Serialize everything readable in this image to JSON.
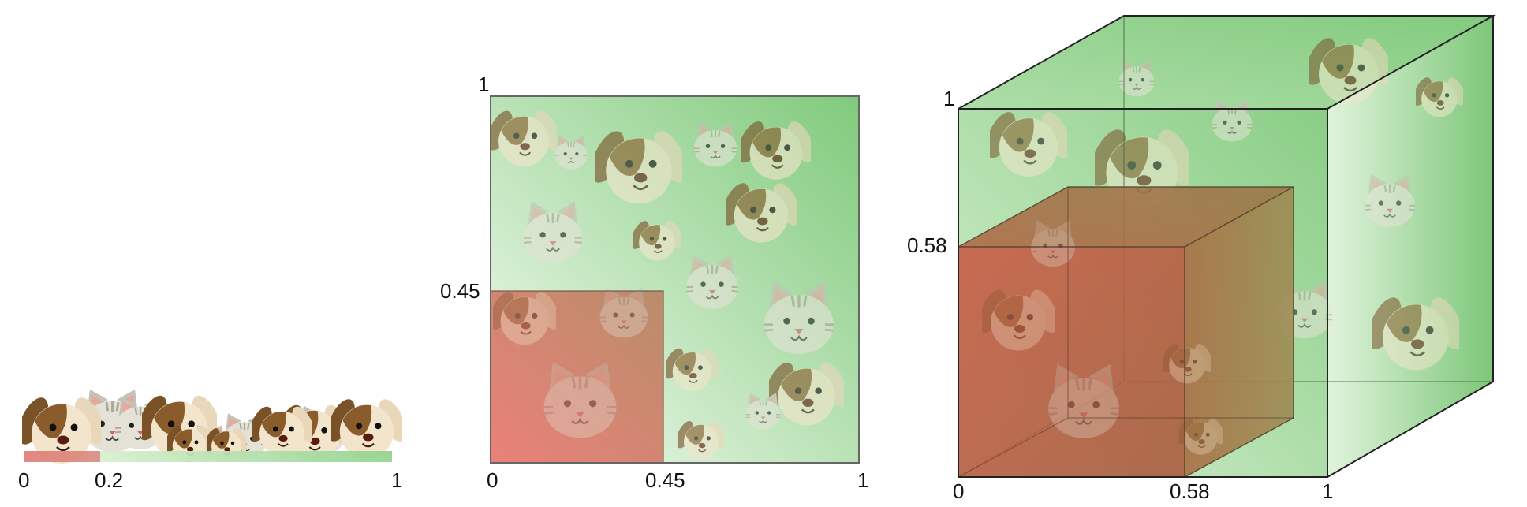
{
  "panels": [
    {
      "id": "line-1d",
      "labels": {
        "zero": "0",
        "ratio": "0.2",
        "one": "1"
      },
      "subset_fraction": 0.2
    },
    {
      "id": "square-2d",
      "labels": {
        "x_zero": "0",
        "x_ratio": "0.45",
        "x_one": "1",
        "y_ratio": "0.45",
        "y_one": "1"
      },
      "subset_fraction": 0.45
    },
    {
      "id": "cube-3d",
      "labels": {
        "x_zero": "0",
        "x_ratio": "0.58",
        "x_one": "1",
        "y_ratio": "0.58",
        "y_one": "1"
      },
      "subset_fraction": 0.58
    }
  ],
  "colors": {
    "full_region": "#7cc87a",
    "full_region_light": "#e6f5e2",
    "subset_region": "#e0726a",
    "subset_region_dark": "#a4543a",
    "outline": "#333333"
  },
  "icons": [
    "dog-face-icon",
    "cat-face-icon"
  ]
}
